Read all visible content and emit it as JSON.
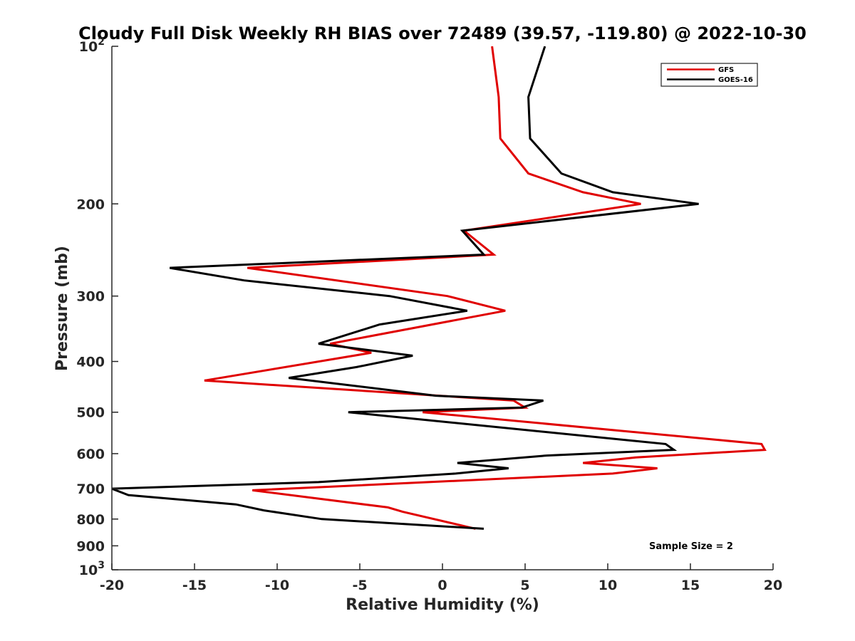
{
  "chart_data": {
    "type": "line",
    "title": "Cloudy Full Disk Weekly RH BIAS over 72489 (39.57, -119.80) @ 2022-10-30",
    "xlabel": "Relative Humidity (%)",
    "ylabel": "Pressure (mb)",
    "xlim": [
      -20,
      20
    ],
    "ylim": [
      100,
      1000
    ],
    "y_scale": "log",
    "y_reversed": true,
    "grid": false,
    "legend_position": "top-right",
    "x_ticks": [
      "-20",
      "-15",
      "-10",
      "-5",
      "0",
      "5",
      "10",
      "15",
      "20"
    ],
    "y_ticks": [
      {
        "base": "10",
        "exp": "2"
      },
      {
        "label": "200"
      },
      {
        "label": "300"
      },
      {
        "label": "400"
      },
      {
        "label": "500"
      },
      {
        "label": "600"
      },
      {
        "label": "700"
      },
      {
        "label": "800"
      },
      {
        "label": "900"
      },
      {
        "base": "10",
        "exp": "3"
      }
    ],
    "annotation": "Sample Size = 2",
    "series": [
      {
        "name": "GFS",
        "color": "#e00000",
        "points": [
          [
            3.0,
            100
          ],
          [
            3.4,
            125
          ],
          [
            3.5,
            150
          ],
          [
            5.2,
            175
          ],
          [
            8.5,
            190
          ],
          [
            12.0,
            200
          ],
          [
            1.3,
            225
          ],
          [
            3.1,
            250
          ],
          [
            -11.8,
            265
          ],
          [
            0.3,
            300
          ],
          [
            3.8,
            320
          ],
          [
            -6.8,
            370
          ],
          [
            -4.3,
            385
          ],
          [
            -14.4,
            435
          ],
          [
            4.3,
            475
          ],
          [
            5.0,
            490
          ],
          [
            -1.2,
            500
          ],
          [
            19.3,
            575
          ],
          [
            19.5,
            590
          ],
          [
            11.7,
            610
          ],
          [
            8.5,
            625
          ],
          [
            13.0,
            640
          ],
          [
            10.3,
            655
          ],
          [
            -11.5,
            705
          ],
          [
            -3.3,
            760
          ],
          [
            -2.4,
            775
          ],
          [
            2.0,
            835
          ]
        ]
      },
      {
        "name": "GOES-16",
        "color": "#000000",
        "points": [
          [
            6.2,
            100
          ],
          [
            5.2,
            125
          ],
          [
            5.3,
            150
          ],
          [
            7.2,
            175
          ],
          [
            10.3,
            190
          ],
          [
            15.5,
            200
          ],
          [
            1.2,
            225
          ],
          [
            2.5,
            250
          ],
          [
            -16.5,
            265
          ],
          [
            -12.0,
            280
          ],
          [
            -3.2,
            300
          ],
          [
            1.5,
            320
          ],
          [
            -3.8,
            340
          ],
          [
            -7.5,
            370
          ],
          [
            -1.8,
            390
          ],
          [
            -5.2,
            410
          ],
          [
            -9.3,
            430
          ],
          [
            -0.4,
            465
          ],
          [
            6.1,
            475
          ],
          [
            4.8,
            490
          ],
          [
            -5.7,
            500
          ],
          [
            13.5,
            575
          ],
          [
            14.0,
            590
          ],
          [
            6.3,
            605
          ],
          [
            0.9,
            625
          ],
          [
            4.0,
            640
          ],
          [
            0.8,
            655
          ],
          [
            -7.5,
            680
          ],
          [
            -20.0,
            700
          ],
          [
            -19.0,
            720
          ],
          [
            -12.5,
            750
          ],
          [
            -10.8,
            770
          ],
          [
            -7.3,
            800
          ],
          [
            2.5,
            835
          ]
        ]
      }
    ]
  }
}
